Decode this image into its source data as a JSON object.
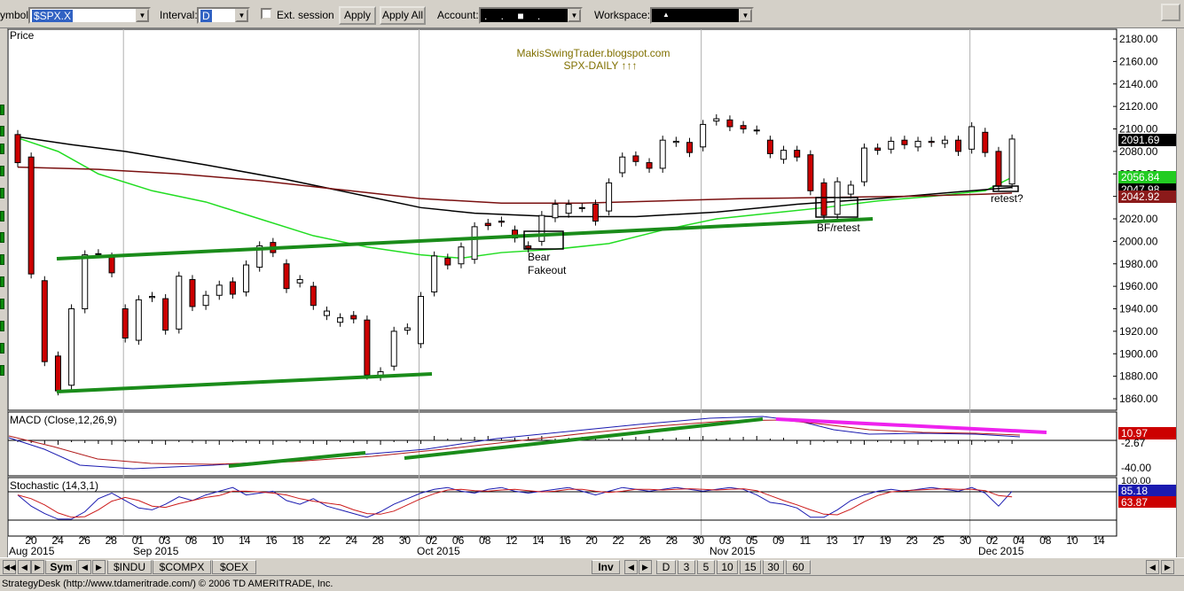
{
  "toolbar": {
    "symbol_label": "ymbol:",
    "symbol_value": "$SPX.X",
    "interval_label": "Interval:",
    "interval_value": "D",
    "ext_session_label": "Ext. session",
    "apply_label": "Apply",
    "apply_all_label": "Apply All",
    "account_label": "Account:",
    "account_value": ". . ■ .",
    "workspace_label": "Workspace:",
    "workspace_value": "▲"
  },
  "chart": {
    "price_pane_title": "Price",
    "watermark_line1": "MakisSwingTrader.blogspot.com",
    "watermark_line2": "SPX-DAILY  ↑↑↑",
    "annotations": {
      "bear": "Bear",
      "fakeout": "Fakeout",
      "bf_retest": "BF/retest",
      "retest": "retest?"
    },
    "price_axis_labels": [
      "2180.00",
      "2160.00",
      "2140.00",
      "2120.00",
      "2100.00",
      "2080.00",
      "2060.00",
      "2040.00",
      "2020.00",
      "2000.00",
      "1980.00",
      "1960.00",
      "1940.00",
      "1920.00",
      "1900.00",
      "1880.00",
      "1860.00"
    ],
    "price_badges": [
      {
        "text": "2091.69",
        "bg": "#000000",
        "fg": "#ffffff"
      },
      {
        "text": "2056.84",
        "bg": "#22cc22",
        "fg": "#ffffff"
      },
      {
        "text": "2047.98",
        "bg": "#000000",
        "fg": "#ffffff"
      },
      {
        "text": "2042.92",
        "bg": "#8b1a1a",
        "fg": "#ffffff"
      }
    ],
    "macd_title": "MACD (Close,12,26,9)",
    "macd_labels": {
      "value": "10.97",
      "signal": "-2.67",
      "low": "-40.00"
    },
    "stoch_title": "Stochastic (14,3,1)",
    "stoch_labels": {
      "k": "85.18",
      "d": "63.87",
      "top": "100.00"
    },
    "date_ticks": [
      "20",
      "24",
      "26",
      "28",
      "01",
      "03",
      "08",
      "10",
      "14",
      "16",
      "18",
      "22",
      "24",
      "28",
      "30",
      "02",
      "06",
      "08",
      "12",
      "14",
      "16",
      "20",
      "22",
      "26",
      "28",
      "30",
      "03",
      "05",
      "09",
      "11",
      "13",
      "17",
      "19",
      "23",
      "25",
      "30",
      "02",
      "04",
      "08",
      "10",
      "14"
    ],
    "month_labels": [
      "Aug 2015",
      "Sep 2015",
      "Oct 2015",
      "Nov 2015",
      "Dec 2015"
    ],
    "colors": {
      "up": "#ffffff",
      "down": "#cc0000",
      "trendline": "#1a8c1a",
      "ma_green": "#22dd22",
      "ma_black": "#000000",
      "ma_brown": "#7a1010",
      "magenta": "#ee22ee"
    }
  },
  "chart_data": {
    "type": "candlestick",
    "title": "SPX-DAILY",
    "ylabel": "Price",
    "ylim": [
      1850,
      2190
    ],
    "x": [
      "Aug 20",
      "Aug 21",
      "Aug 24",
      "Aug 25",
      "Aug 26",
      "Aug 27",
      "Aug 28",
      "Aug 31",
      "Sep 01",
      "Sep 02",
      "Sep 03",
      "Sep 04",
      "Sep 08",
      "Sep 09",
      "Sep 10",
      "Sep 11",
      "Sep 14",
      "Sep 15",
      "Sep 16",
      "Sep 17",
      "Sep 18",
      "Sep 21",
      "Sep 22",
      "Sep 23",
      "Sep 24",
      "Sep 25",
      "Sep 28",
      "Sep 29",
      "Sep 30",
      "Oct 01",
      "Oct 02",
      "Oct 05",
      "Oct 06",
      "Oct 07",
      "Oct 08",
      "Oct 09",
      "Oct 12",
      "Oct 13",
      "Oct 14",
      "Oct 15",
      "Oct 16",
      "Oct 19",
      "Oct 20",
      "Oct 21",
      "Oct 22",
      "Oct 23",
      "Oct 26",
      "Oct 27",
      "Oct 28",
      "Oct 29",
      "Oct 30",
      "Nov 02",
      "Nov 03",
      "Nov 04",
      "Nov 05",
      "Nov 06",
      "Nov 09",
      "Nov 10",
      "Nov 11",
      "Nov 12",
      "Nov 13",
      "Nov 16",
      "Nov 17",
      "Nov 18",
      "Nov 19",
      "Nov 20",
      "Nov 23",
      "Nov 24",
      "Nov 25",
      "Nov 27",
      "Nov 30",
      "Dec 01",
      "Dec 02",
      "Dec 03",
      "Dec 04"
    ],
    "open": [
      2095,
      2075,
      1965,
      1898,
      1872,
      1940,
      1989,
      1986,
      1940,
      1912,
      1950,
      1949,
      1922,
      1966,
      1943,
      1952,
      1964,
      1955,
      1977,
      1999,
      1980,
      1963,
      1960,
      1934,
      1928,
      1934,
      1930,
      1880,
      1889,
      1921,
      1909,
      1955,
      1985,
      1980,
      1984,
      2016,
      2018,
      2010,
      1996,
      2000,
      2021,
      2025,
      2030,
      2033,
      2027,
      2061,
      2076,
      2070,
      2065,
      2088,
      2088,
      2084,
      2107,
      2108,
      2103,
      2099,
      2090,
      2073,
      2081,
      2077,
      2052,
      2024,
      2042,
      2053,
      2083,
      2082,
      2090,
      2084,
      2089,
      2087,
      2090,
      2082,
      2097,
      2080,
      2051
    ],
    "close": [
      2070,
      1971,
      1893,
      1867,
      1940,
      1988,
      1989,
      1972,
      1914,
      1948,
      1951,
      1921,
      1969,
      1942,
      1952,
      1961,
      1953,
      1979,
      1996,
      1990,
      1958,
      1966,
      1943,
      1938,
      1932,
      1931,
      1881,
      1884,
      1920,
      1923,
      1951,
      1987,
      1979,
      1995,
      2013,
      2014,
      2017,
      2003,
      1994,
      2023,
      2033,
      2033,
      2030,
      2018,
      2052,
      2075,
      2071,
      2065,
      2090,
      2089,
      2079,
      2104,
      2109,
      2102,
      2100,
      2099,
      2078,
      2081,
      2075,
      2045,
      2023,
      2053,
      2050,
      2083,
      2081,
      2089,
      2086,
      2089,
      2088,
      2090,
      2080,
      2102,
      2079,
      2049,
      2091
    ]
  }
}
